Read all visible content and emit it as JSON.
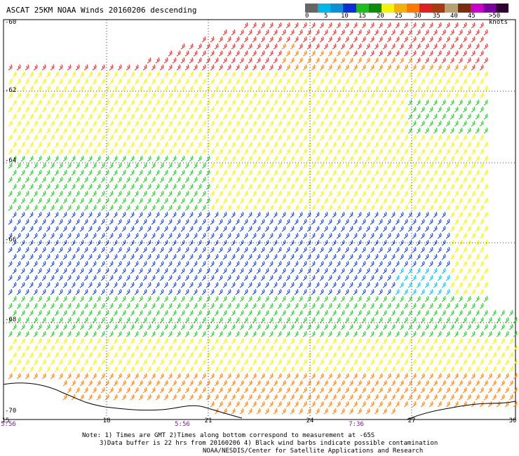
{
  "title": "ASCAT 25KM NOAA Winds 20160206 descending",
  "legend": {
    "colors": [
      "#666666",
      "#00b7eb",
      "#0a8fd8",
      "#0a2fd6",
      "#1fbe1f",
      "#0f8a0f",
      "#f2f20a",
      "#f2b00a",
      "#ff7700",
      "#dd2020",
      "#a83a10",
      "#b8a070",
      "#7a2e0a",
      "#cc00cc",
      "#7a00a0",
      "#300030"
    ],
    "labels": [
      "0",
      "5",
      "10",
      "15",
      "20",
      "25",
      "30",
      "35",
      "40",
      "45",
      ">50 knots"
    ]
  },
  "lat_labels": [
    "-60",
    "-62",
    "-64",
    "-66",
    "-68",
    "-70"
  ],
  "lon_labels": [
    "15",
    "18",
    "21",
    "24",
    "27",
    "30"
  ],
  "times": [
    "5:56",
    "5:56",
    "7:36"
  ],
  "notes": [
    "Note: 1) Times are GMT 2)Times along bottom correspond to measurement at -65S",
    "3)Data buffer is 22 hrs from 20160206 4) Black wind barbs indicate possible contamination",
    "NOAA/NESDIS/Center for Satellite Applications and Research"
  ]
}
